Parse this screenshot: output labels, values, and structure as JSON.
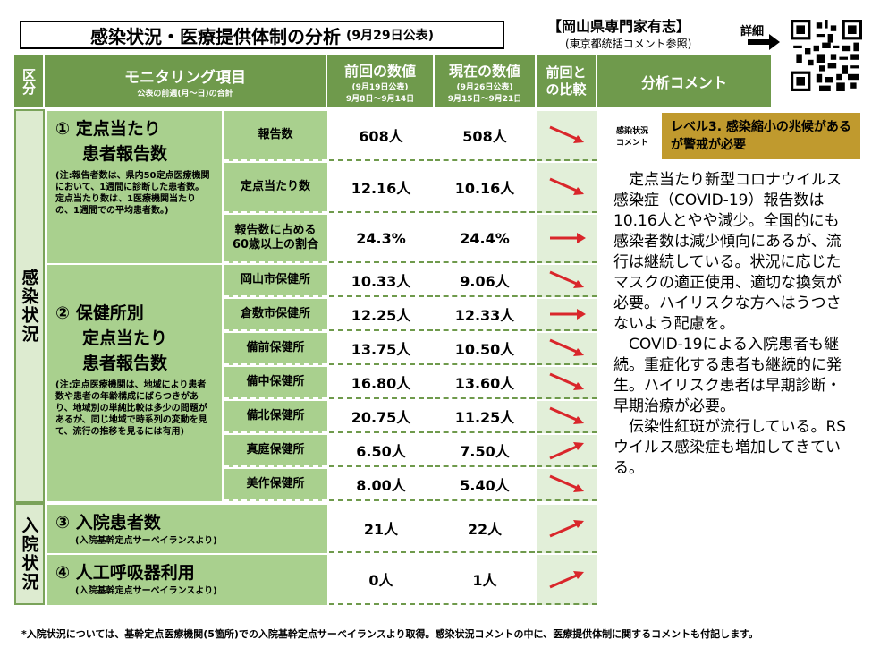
{
  "title": {
    "main": "感染状況・医療提供体制の分析",
    "date": "(9月29日公表)"
  },
  "org": {
    "name": "【岡山県専門家有志】",
    "sub": "(東京都統括コメント参照)",
    "detail": "詳細"
  },
  "header": {
    "category": "区分",
    "item": "モニタリング項目",
    "item_note": "公表の前週(月～日)の合計",
    "prev": "前回の数値",
    "prev_note1": "(9月19日公表)",
    "prev_note2": "9月8日～9月14日",
    "curr": "現在の数値",
    "curr_note1": "(9月26日公表)",
    "curr_note2": "9月15日～9月21日",
    "compare": "前回との比較",
    "comment": "分析コメント"
  },
  "side": {
    "infection": "感染状況",
    "hospital": "入院状況"
  },
  "sections": {
    "s1": {
      "title1": "① 定点当たり",
      "title2": "患者報告数",
      "note": "(注:報告者数は、県内50定点医療機関において、1週間に診断した患者数。定点当たり数は、1医療機関当たりの、1週間での平均患者数。)"
    },
    "s2": {
      "title1": "② 保健所別",
      "title2": "定点当たり",
      "title3": "患者報告数",
      "note": "(注:定点医療機関は、地域により患者数や患者の年齢構成にばらつきがあり、地域別の単純比較は多少の問題があるが、同じ地域で時系列の変動を見て、流行の推移を見るには有用)"
    },
    "s3": {
      "title": "③ 入院患者数",
      "note": "(入院基幹定点サーベイランスより)"
    },
    "s4": {
      "title": "④ 人工呼吸器利用",
      "note": "(入院基幹定点サーベイランスより)"
    }
  },
  "rows": [
    {
      "label": "報告数",
      "prev": "608人",
      "curr": "508人",
      "trend": "down"
    },
    {
      "label": "定点当たり数",
      "prev": "12.16人",
      "curr": "10.16人",
      "trend": "down"
    },
    {
      "label": "報告数に占める60歳以上の割合",
      "prev": "24.3%",
      "curr": "24.4%",
      "trend": "flat"
    },
    {
      "label": "岡山市保健所",
      "prev": "10.33人",
      "curr": "9.06人",
      "trend": "down"
    },
    {
      "label": "倉敷市保健所",
      "prev": "12.25人",
      "curr": "12.33人",
      "trend": "flat"
    },
    {
      "label": "備前保健所",
      "prev": "13.75人",
      "curr": "10.50人",
      "trend": "down"
    },
    {
      "label": "備中保健所",
      "prev": "16.80人",
      "curr": "13.60人",
      "trend": "down"
    },
    {
      "label": "備北保健所",
      "prev": "20.75人",
      "curr": "11.25人",
      "trend": "down"
    },
    {
      "label": "真庭保健所",
      "prev": "6.50人",
      "curr": "7.50人",
      "trend": "up"
    },
    {
      "label": "美作保健所",
      "prev": "8.00人",
      "curr": "5.40人",
      "trend": "down"
    },
    {
      "label": "",
      "prev": "21人",
      "curr": "22人",
      "trend": "up"
    },
    {
      "label": "",
      "prev": "0人",
      "curr": "1人",
      "trend": "up"
    }
  ],
  "comment": {
    "tag1": "感染状況",
    "tag2": "コメント",
    "level": "レベル3. 感染縮小の兆候があるが警戒が必要",
    "body": "　定点当たり新型コロナウイルス感染症（COVID-19）報告数は10.16人とやや減少。全国的にも感染者数は減少傾向にあるが、流行は継続している。状況に応じたマスクの適正使用、適切な換気が必要。ハイリスクな方へはうつさないよう配慮を。\n　COVID-19による入院患者も継続。重症化する患者も継続的に発生。ハイリスク患者は早期診断・早期治療が必要。\n　伝染性紅斑が流行している。RSウイルス感染症も増加してきている。"
  },
  "footnote": "*入院状況については、基幹定点医療機関(5箇所)での入院基幹定点サーベイランスより取得。感染状況コメントの中に、医療提供体制に関するコメントも付記します。",
  "colors": {
    "header": "#6f9a4c",
    "item": "#a9d08e",
    "level": "#c09a2e",
    "arrow": "#d9262b"
  }
}
